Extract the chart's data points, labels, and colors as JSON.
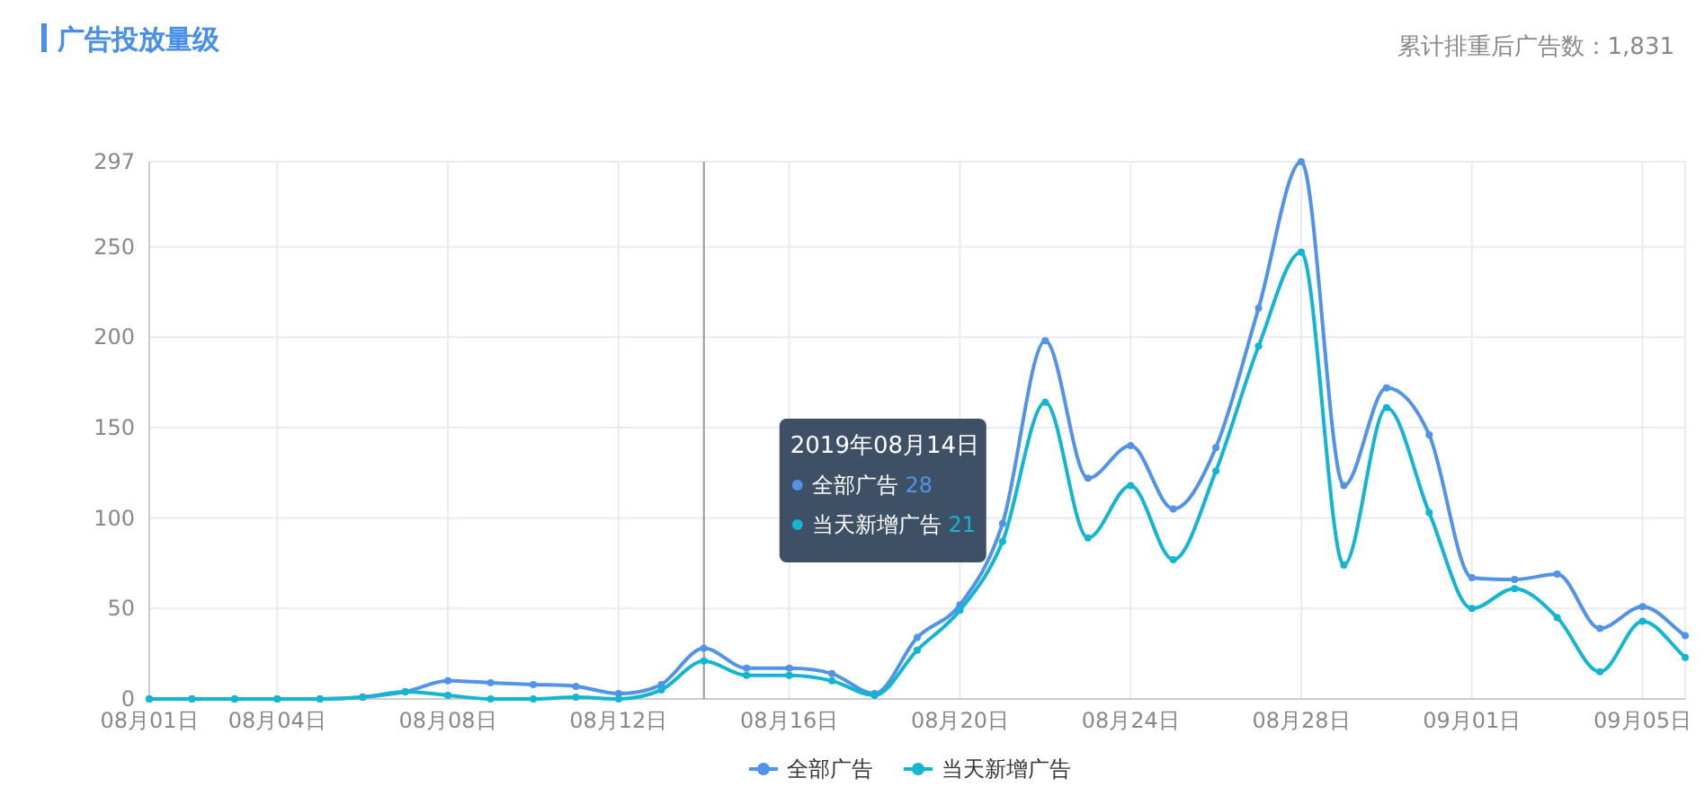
{
  "chart_data": {
    "type": "line",
    "title": "广告投放量级",
    "subtitle": "累计排重后广告数：1,831",
    "x": [
      "2019-08-01",
      "2019-08-02",
      "2019-08-03",
      "2019-08-04",
      "2019-08-05",
      "2019-08-06",
      "2019-08-07",
      "2019-08-08",
      "2019-08-09",
      "2019-08-10",
      "2019-08-11",
      "2019-08-12",
      "2019-08-13",
      "2019-08-14",
      "2019-08-15",
      "2019-08-16",
      "2019-08-17",
      "2019-08-18",
      "2019-08-19",
      "2019-08-20",
      "2019-08-21",
      "2019-08-22",
      "2019-08-23",
      "2019-08-24",
      "2019-08-25",
      "2019-08-26",
      "2019-08-27",
      "2019-08-28",
      "2019-08-29",
      "2019-08-30",
      "2019-08-31",
      "2019-09-01",
      "2019-09-02",
      "2019-09-03",
      "2019-09-04",
      "2019-09-05",
      "2019-09-06"
    ],
    "series": [
      {
        "name": "全部广告",
        "color": "#5193e8",
        "values": [
          0,
          0,
          0,
          0,
          0,
          1,
          4,
          10,
          9,
          8,
          7,
          3,
          8,
          28,
          17,
          17,
          14,
          3,
          34,
          52,
          97,
          198,
          122,
          140,
          105,
          139,
          216,
          297,
          118,
          172,
          146,
          67,
          66,
          69,
          39,
          51,
          35
        ]
      },
      {
        "name": "当天新增广告",
        "color": "#13b5d1",
        "values": [
          0,
          0,
          0,
          0,
          0,
          1,
          4,
          2,
          0,
          0,
          1,
          0,
          5,
          21,
          13,
          13,
          10,
          2,
          27,
          49,
          87,
          164,
          89,
          118,
          77,
          126,
          195,
          247,
          74,
          161,
          103,
          50,
          61,
          45,
          15,
          43,
          23
        ]
      }
    ],
    "xlim": [
      "2019-08-01",
      "2019-09-06"
    ],
    "xticks": [
      {
        "value": "2019-08-01",
        "label": "08月01日"
      },
      {
        "value": "2019-08-04",
        "label": "08月04日"
      },
      {
        "value": "2019-08-08",
        "label": "08月08日"
      },
      {
        "value": "2019-08-12",
        "label": "08月12日"
      },
      {
        "value": "2019-08-16",
        "label": "08月16日"
      },
      {
        "value": "2019-08-20",
        "label": "08月20日"
      },
      {
        "value": "2019-08-24",
        "label": "08月24日"
      },
      {
        "value": "2019-08-28",
        "label": "08月28日"
      },
      {
        "value": "2019-09-01",
        "label": "09月01日"
      },
      {
        "value": "2019-09-05",
        "label": "09月05日"
      }
    ],
    "ylim": [
      0,
      297
    ],
    "yticks": [
      0,
      50,
      100,
      150,
      200,
      250,
      297
    ],
    "grid": true,
    "legend": "bottom",
    "marker": "circle",
    "line_style": "solid",
    "ref_lines": [
      {
        "axis": "x",
        "value": "2019-08-14",
        "color": "#999999"
      }
    ],
    "annotations": [
      "2019年08月14日",
      "全部广告 28",
      "当天新增广告 21"
    ]
  }
}
